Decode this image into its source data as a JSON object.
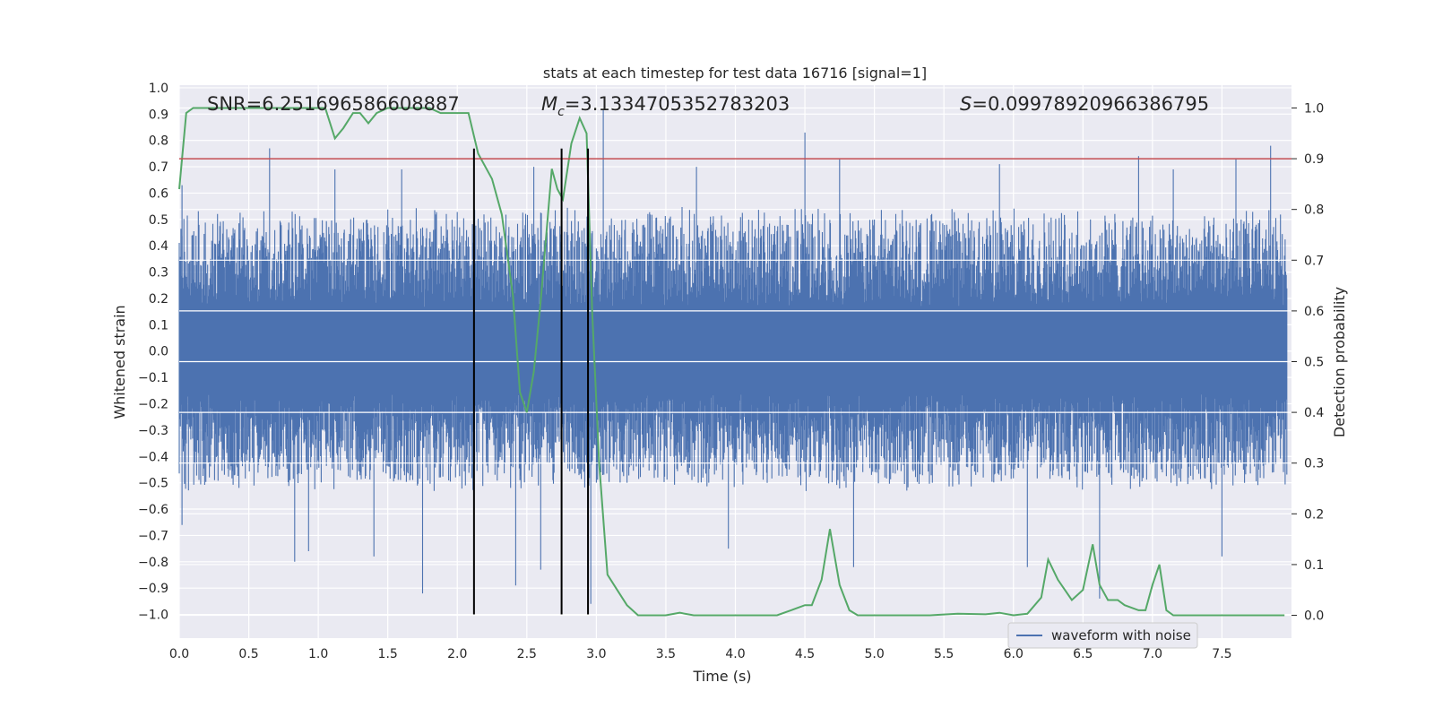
{
  "chart_data": {
    "type": "line",
    "title": "stats at each timestep for test data 16716 [signal=1]",
    "xlabel": "Time (s)",
    "ylabel": "Whitened strain",
    "ylabel_right": "Detection probability",
    "xlim": [
      0.0,
      8.0
    ],
    "ylim": [
      -1.09,
      1.01
    ],
    "ylim_right": [
      -0.045,
      1.045
    ],
    "x_ticks": [
      0.0,
      0.5,
      1.0,
      1.5,
      2.0,
      2.5,
      3.0,
      3.5,
      4.0,
      4.5,
      5.0,
      5.5,
      6.0,
      6.5,
      7.0,
      7.5
    ],
    "x_tick_labels": [
      "0.0",
      "0.5",
      "1.0",
      "1.5",
      "2.0",
      "2.5",
      "3.0",
      "3.5",
      "4.0",
      "4.5",
      "5.0",
      "5.5",
      "6.0",
      "6.5",
      "7.0",
      "7.5"
    ],
    "y_ticks": [
      1.0,
      0.9,
      0.8,
      0.7,
      0.6,
      0.5,
      0.4,
      0.3,
      0.2,
      0.1,
      0.0,
      -0.1,
      -0.2,
      -0.3,
      -0.4,
      -0.5,
      -0.6,
      -0.7,
      -0.8,
      -0.9,
      -1.0
    ],
    "y_tick_labels": [
      "1.0",
      "0.9",
      "0.8",
      "0.7",
      "0.6",
      "0.5",
      "0.4",
      "0.3",
      "0.2",
      "0.1",
      "0.0",
      "−0.1",
      "−0.2",
      "−0.3",
      "−0.4",
      "−0.5",
      "−0.6",
      "−0.7",
      "−0.8",
      "−0.9",
      "−1.0"
    ],
    "y_right_ticks": [
      1.0,
      0.9,
      0.8,
      0.7,
      0.6,
      0.5,
      0.4,
      0.3,
      0.2,
      0.1,
      0.0
    ],
    "y_right_tick_labels": [
      "1.0",
      "0.9",
      "0.8",
      "0.7",
      "0.6",
      "0.5",
      "0.4",
      "0.3",
      "0.2",
      "0.1",
      "0.0"
    ],
    "grid": true,
    "annotations": {
      "snr": "SNR=6.251696586608887",
      "mc": "=3.1334705352783203",
      "mc_symbol": "M",
      "mc_sub": "c",
      "s": "=0.09978920966386795",
      "s_symbol": "S"
    },
    "legend": {
      "label": "waveform with noise",
      "loc": "lower-right"
    },
    "colors": {
      "axes_bg": "#eaeaf2",
      "grid": "#ffffff",
      "waveform": "#4c72b0",
      "probability": "#55a868",
      "threshold": "#c44e52",
      "markers": "#000000"
    },
    "threshold_right": 0.9,
    "vertical_markers": [
      2.12,
      2.75,
      2.94
    ],
    "vertical_marker_top": 0.92,
    "vertical_marker_bottom": -1.0,
    "waveform_envelope": {
      "x_step": 0.0125,
      "upper_typical": 0.43,
      "lower_typical": -0.42,
      "spikes": [
        [
          0.02,
          0.63
        ],
        [
          0.65,
          0.77
        ],
        [
          1.12,
          0.69
        ],
        [
          1.6,
          0.69
        ],
        [
          2.55,
          0.7
        ],
        [
          3.05,
          0.92
        ],
        [
          3.72,
          0.7
        ],
        [
          4.5,
          0.83
        ],
        [
          4.75,
          0.73
        ],
        [
          5.9,
          0.71
        ],
        [
          6.9,
          0.74
        ],
        [
          7.15,
          0.69
        ],
        [
          7.6,
          0.73
        ],
        [
          7.85,
          0.78
        ],
        [
          0.02,
          -0.66
        ],
        [
          0.83,
          -0.8
        ],
        [
          0.93,
          -0.76
        ],
        [
          1.4,
          -0.78
        ],
        [
          1.75,
          -0.92
        ],
        [
          2.42,
          -0.89
        ],
        [
          2.6,
          -0.83
        ],
        [
          2.96,
          -0.96
        ],
        [
          3.95,
          -0.75
        ],
        [
          4.85,
          -0.82
        ],
        [
          6.1,
          -0.82
        ],
        [
          6.62,
          -0.94
        ],
        [
          7.5,
          -0.78
        ]
      ]
    },
    "probability_series": {
      "x": [
        0.0,
        0.05,
        0.1,
        0.2,
        0.4,
        0.6,
        0.8,
        1.0,
        1.05,
        1.12,
        1.18,
        1.25,
        1.3,
        1.36,
        1.42,
        1.5,
        1.6,
        1.8,
        1.88,
        2.0,
        2.08,
        2.15,
        2.25,
        2.32,
        2.4,
        2.45,
        2.5,
        2.55,
        2.6,
        2.68,
        2.72,
        2.76,
        2.82,
        2.88,
        2.93,
        2.97,
        3.02,
        3.08,
        3.15,
        3.22,
        3.3,
        3.4,
        3.5,
        3.6,
        3.7,
        3.8,
        3.9,
        4.0,
        4.1,
        4.2,
        4.3,
        4.4,
        4.5,
        4.55,
        4.62,
        4.68,
        4.75,
        4.82,
        4.88,
        4.96,
        5.05,
        5.2,
        5.4,
        5.6,
        5.8,
        5.9,
        6.0,
        6.1,
        6.2,
        6.25,
        6.32,
        6.42,
        6.5,
        6.57,
        6.62,
        6.68,
        6.75,
        6.8,
        6.9,
        6.95,
        7.0,
        7.05,
        7.1,
        7.15,
        7.25,
        7.5,
        7.8,
        7.95
      ],
      "y": [
        0.84,
        0.99,
        1.0,
        1.0,
        1.0,
        1.0,
        1.0,
        1.0,
        1.0,
        0.94,
        0.96,
        0.99,
        0.99,
        0.97,
        0.99,
        1.0,
        1.0,
        1.0,
        0.99,
        0.99,
        0.99,
        0.91,
        0.86,
        0.79,
        0.63,
        0.44,
        0.4,
        0.48,
        0.62,
        0.88,
        0.84,
        0.82,
        0.93,
        0.98,
        0.95,
        0.6,
        0.3,
        0.08,
        0.05,
        0.02,
        0.0,
        0.0,
        0.0,
        0.005,
        0.0,
        0.0,
        0.0,
        0.0,
        0.0,
        0.0,
        0.0,
        0.01,
        0.02,
        0.02,
        0.07,
        0.17,
        0.06,
        0.01,
        0.0,
        0.0,
        0.0,
        0.0,
        0.0,
        0.003,
        0.002,
        0.005,
        0.0,
        0.003,
        0.035,
        0.11,
        0.07,
        0.03,
        0.05,
        0.14,
        0.06,
        0.03,
        0.03,
        0.02,
        0.01,
        0.01,
        0.06,
        0.1,
        0.01,
        0.0,
        0.0,
        0.0,
        0.0,
        0.0
      ]
    }
  }
}
